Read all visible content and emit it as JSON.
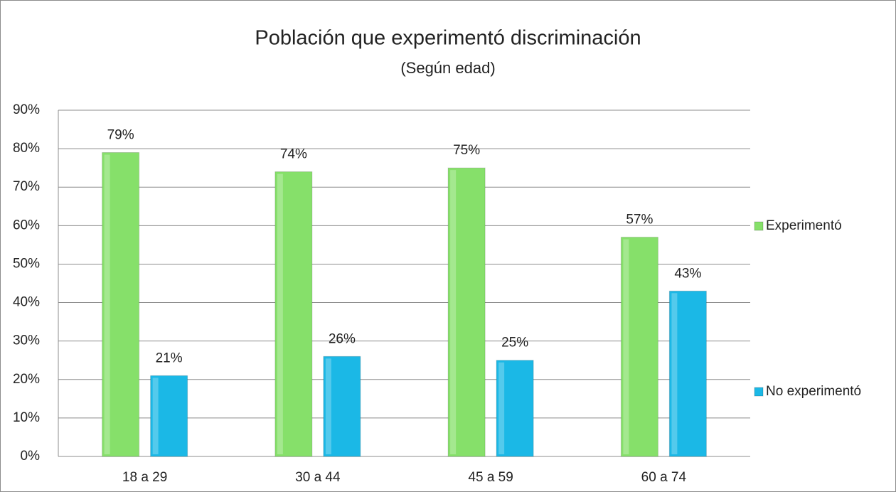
{
  "chart_data": {
    "type": "bar",
    "title": "Población que experimentó discriminación",
    "subtitle": "(Según edad)",
    "categories": [
      "18 a 29",
      "30 a 44",
      "45 a 59",
      "60 a 74"
    ],
    "series": [
      {
        "name": "Experimentó",
        "color": "#86e06a",
        "values": [
          79,
          74,
          75,
          57
        ],
        "value_labels": [
          "79%",
          "74%",
          "75%",
          "57%"
        ]
      },
      {
        "name": "No experimentó",
        "color": "#1bb8e6",
        "values": [
          21,
          26,
          25,
          43
        ],
        "value_labels": [
          "21%",
          "26%",
          "25%",
          "43%"
        ]
      }
    ],
    "ylim": [
      0,
      90
    ],
    "yticks": [
      {
        "value": 0,
        "label": "0%"
      },
      {
        "value": 10,
        "label": "10%"
      },
      {
        "value": 20,
        "label": "20%"
      },
      {
        "value": 30,
        "label": "30%"
      },
      {
        "value": 40,
        "label": "40%"
      },
      {
        "value": 50,
        "label": "50%"
      },
      {
        "value": 60,
        "label": "60%"
      },
      {
        "value": 70,
        "label": "70%"
      },
      {
        "value": 80,
        "label": "80%"
      },
      {
        "value": 90,
        "label": "90%"
      }
    ],
    "grid": true,
    "legend": "right"
  }
}
